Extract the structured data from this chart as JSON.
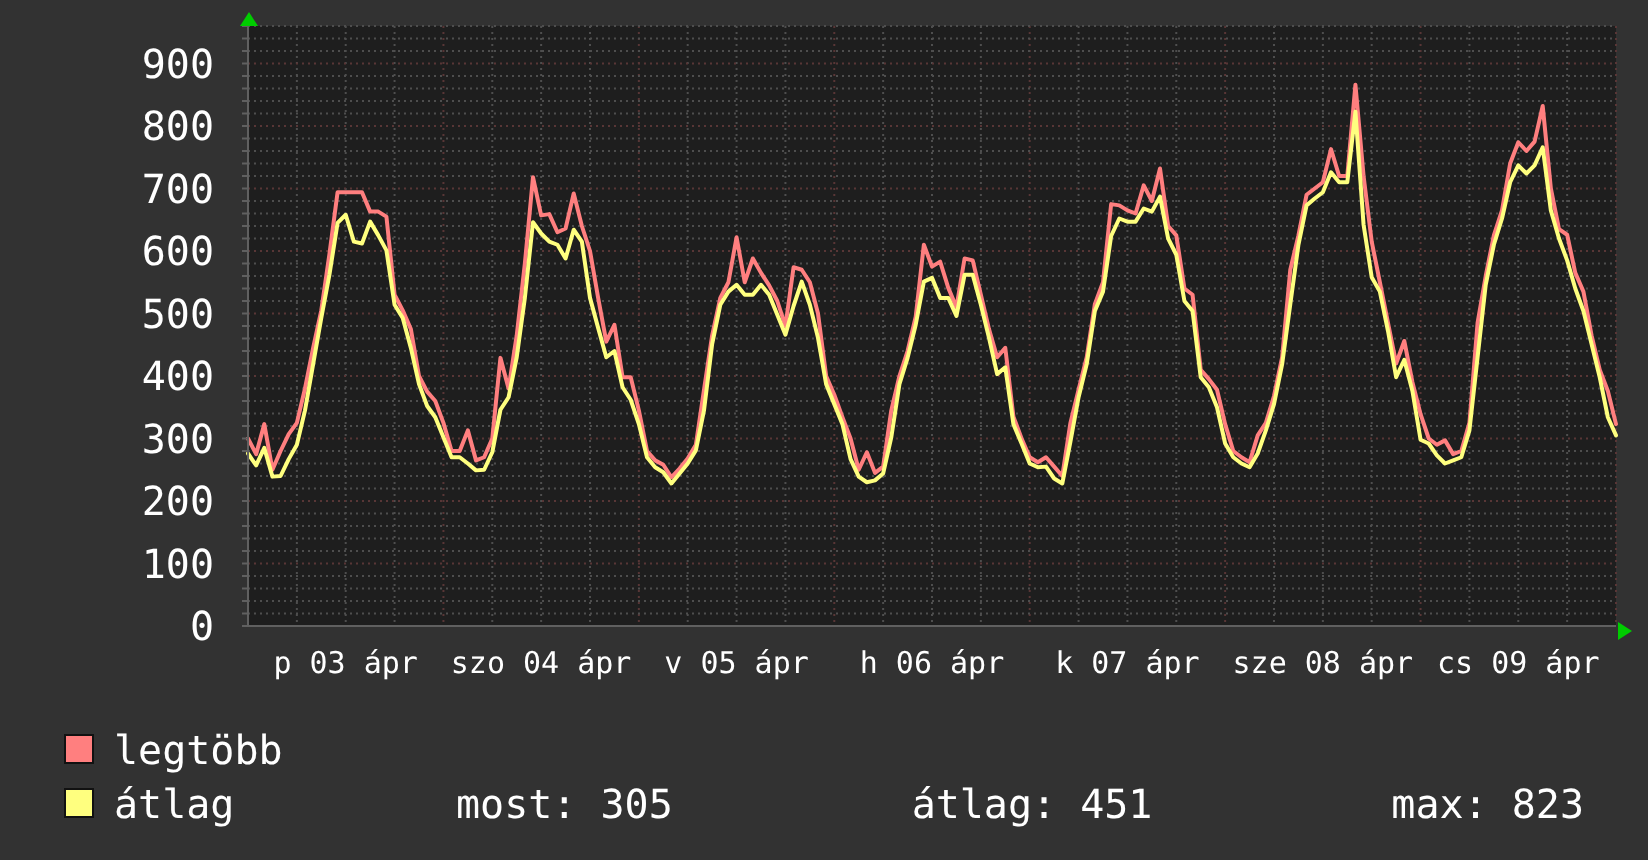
{
  "chart_data": {
    "type": "line",
    "categories": [
      null,
      null,
      null,
      null,
      null,
      null,
      null,
      null,
      null,
      null,
      null,
      null,
      "p 03 ápr",
      null,
      null,
      null,
      null,
      null,
      null,
      null,
      null,
      null,
      null,
      null,
      null,
      null,
      null,
      null,
      null,
      null,
      null,
      null,
      null,
      null,
      null,
      null,
      "szo 04 ápr",
      null,
      null,
      null,
      null,
      null,
      null,
      null,
      null,
      null,
      null,
      null,
      null,
      null,
      null,
      null,
      null,
      null,
      null,
      null,
      null,
      null,
      null,
      null,
      "v 05 ápr",
      null,
      null,
      null,
      null,
      null,
      null,
      null,
      null,
      null,
      null,
      null,
      null,
      null,
      null,
      null,
      null,
      null,
      null,
      null,
      null,
      null,
      null,
      null,
      "h 06 ápr",
      null,
      null,
      null,
      null,
      null,
      null,
      null,
      null,
      null,
      null,
      null,
      null,
      null,
      null,
      null,
      null,
      null,
      null,
      null,
      null,
      null,
      null,
      null,
      "k 07 ápr",
      null,
      null,
      null,
      null,
      null,
      null,
      null,
      null,
      null,
      null,
      null,
      null,
      null,
      null,
      null,
      null,
      null,
      null,
      null,
      null,
      null,
      null,
      null,
      "sze 08 ápr",
      null,
      null,
      null,
      null,
      null,
      null,
      null,
      null,
      null,
      null,
      null,
      null,
      null,
      null,
      null,
      null,
      null,
      null,
      null,
      null,
      null,
      null,
      null,
      "cs 09 ápr",
      null,
      null,
      null,
      null,
      null,
      null,
      null,
      null,
      null,
      null,
      null,
      null
    ],
    "series": [
      {
        "name": "legtöbb",
        "color": "#ff7f7f",
        "values": [
          300,
          275,
          323,
          250,
          280,
          307,
          325,
          380,
          445,
          505,
          595,
          694,
          694,
          694,
          694,
          663,
          663,
          655,
          530,
          505,
          475,
          400,
          375,
          360,
          325,
          280,
          280,
          313,
          265,
          270,
          300,
          429,
          380,
          465,
          580,
          718,
          657,
          659,
          630,
          636,
          692,
          640,
          600,
          525,
          455,
          482,
          398,
          398,
          345,
          280,
          265,
          258,
          238,
          252,
          268,
          290,
          378,
          465,
          525,
          550,
          622,
          550,
          588,
          565,
          545,
          520,
          480,
          574,
          570,
          550,
          500,
          400,
          370,
          334,
          300,
          250,
          278,
          245,
          255,
          345,
          400,
          440,
          495,
          610,
          575,
          583,
          541,
          510,
          588,
          585,
          530,
          475,
          430,
          445,
          335,
          300,
          270,
          262,
          270,
          255,
          240,
          325,
          378,
          430,
          515,
          550,
          675,
          673,
          665,
          660,
          705,
          680,
          732,
          640,
          625,
          540,
          530,
          410,
          395,
          378,
          323,
          280,
          270,
          262,
          305,
          325,
          368,
          430,
          570,
          625,
          690,
          700,
          710,
          763,
          720,
          720,
          866,
          720,
          615,
          550,
          485,
          420,
          456,
          390,
          339,
          300,
          290,
          297,
          275,
          280,
          325,
          485,
          560,
          625,
          665,
          740,
          774,
          760,
          775,
          832,
          700,
          635,
          626,
          565,
          535,
          465,
          410,
          376,
          323
        ]
      },
      {
        "name": "átlag",
        "color": "#ffff7f",
        "values": [
          276,
          257,
          285,
          239,
          240,
          267,
          290,
          345,
          419,
          493,
          562,
          645,
          658,
          615,
          612,
          647,
          625,
          601,
          514,
          493,
          445,
          387,
          352,
          334,
          302,
          270,
          270,
          260,
          249,
          250,
          278,
          346,
          366,
          430,
          525,
          646,
          628,
          615,
          610,
          588,
          634,
          615,
          525,
          477,
          430,
          440,
          382,
          362,
          323,
          270,
          254,
          246,
          228,
          244,
          260,
          281,
          345,
          451,
          514,
          535,
          546,
          530,
          530,
          546,
          530,
          498,
          466,
          512,
          551,
          514,
          461,
          387,
          355,
          323,
          267,
          239,
          230,
          233,
          244,
          302,
          387,
          429,
          482,
          551,
          557,
          525,
          525,
          496,
          562,
          562,
          514,
          461,
          403,
          414,
          323,
          292,
          260,
          254,
          255,
          236,
          228,
          295,
          366,
          419,
          504,
          535,
          624,
          652,
          647,
          647,
          668,
          663,
          687,
          620,
          594,
          520,
          504,
          398,
          382,
          350,
          292,
          270,
          260,
          254,
          276,
          313,
          355,
          419,
          515,
          610,
          673,
          684,
          694,
          726,
          710,
          710,
          823,
          642,
          558,
          535,
          472,
          398,
          426,
          376,
          298,
          292,
          273,
          260,
          265,
          270,
          313,
          430,
          546,
          610,
          652,
          710,
          737,
          724,
          737,
          766,
          665,
          620,
          585,
          540,
          504,
          451,
          398,
          334,
          305
        ]
      }
    ],
    "ylim": [
      0,
      960
    ],
    "yticks": [
      0,
      {
        "value": 20,
        "label": null
      },
      {
        "value": 40,
        "label": null
      },
      {
        "value": 60,
        "label": null
      },
      {
        "value": 80,
        "label": null
      },
      100,
      {
        "value": 120,
        "label": null
      },
      {
        "value": 140,
        "label": null
      },
      {
        "value": 160,
        "label": null
      },
      {
        "value": 180,
        "label": null
      },
      200,
      {
        "value": 220,
        "label": null
      },
      {
        "value": 240,
        "label": null
      },
      {
        "value": 260,
        "label": null
      },
      {
        "value": 280,
        "label": null
      },
      300,
      {
        "value": 320,
        "label": null
      },
      {
        "value": 340,
        "label": null
      },
      {
        "value": 360,
        "label": null
      },
      {
        "value": 380,
        "label": null
      },
      400,
      {
        "value": 420,
        "label": null
      },
      {
        "value": 440,
        "label": null
      },
      {
        "value": 460,
        "label": null
      },
      {
        "value": 480,
        "label": null
      },
      500,
      {
        "value": 520,
        "label": null
      },
      {
        "value": 540,
        "label": null
      },
      {
        "value": 560,
        "label": null
      },
      {
        "value": 580,
        "label": null
      },
      600,
      {
        "value": 620,
        "label": null
      },
      {
        "value": 640,
        "label": null
      },
      {
        "value": 660,
        "label": null
      },
      {
        "value": 680,
        "label": null
      },
      700,
      {
        "value": 720,
        "label": null
      },
      {
        "value": 740,
        "label": null
      },
      {
        "value": 760,
        "label": null
      },
      {
        "value": 780,
        "label": null
      },
      800,
      {
        "value": 820,
        "label": null
      },
      {
        "value": 840,
        "label": null
      },
      {
        "value": 860,
        "label": null
      },
      {
        "value": 880,
        "label": null
      },
      900,
      {
        "value": 920,
        "label": null
      },
      {
        "value": 940,
        "label": null
      },
      {
        "value": 960,
        "label": null
      }
    ],
    "grid": true,
    "legend": "bottom left",
    "line_style": "solid",
    "annotations": [
      "most: 305",
      "átlag: 451",
      "max: 823"
    ]
  }
}
